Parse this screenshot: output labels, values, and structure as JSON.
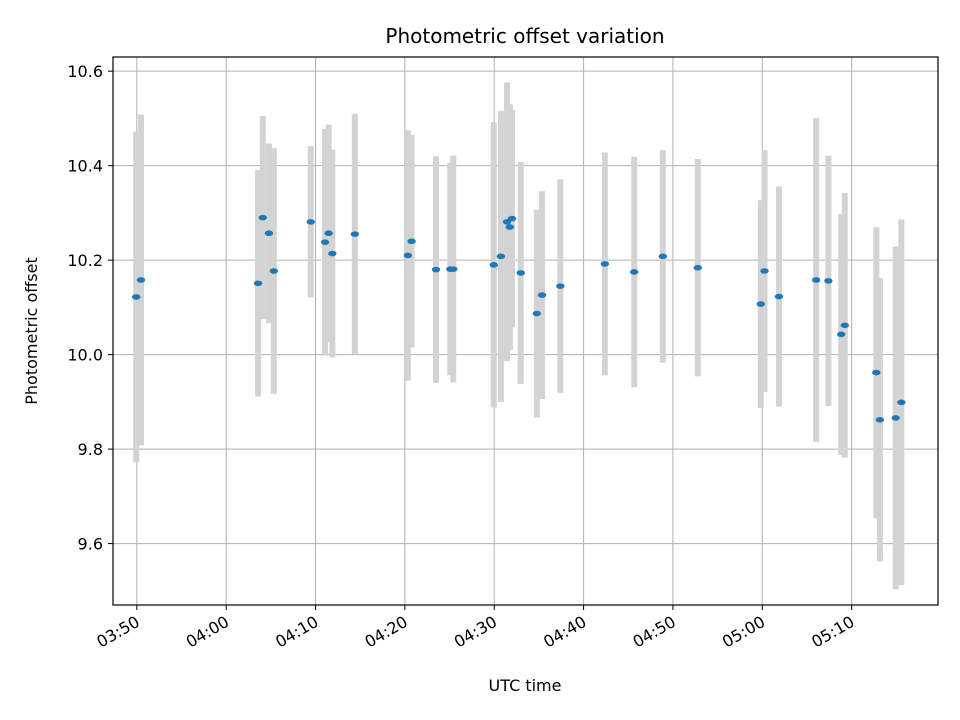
{
  "chart_data": {
    "type": "scatter",
    "title": "Photometric offset variation",
    "xlabel": "UTC time",
    "ylabel": "Photometric offset",
    "grid": true,
    "xlim": [
      "03:47:20",
      "05:19:40"
    ],
    "ylim": [
      9.47,
      10.63
    ],
    "x_ticks": [
      "03:50",
      "04:00",
      "04:10",
      "04:20",
      "04:30",
      "04:40",
      "04:50",
      "05:00",
      "05:10"
    ],
    "y_ticks": [
      9.6,
      9.8,
      10.0,
      10.2,
      10.4,
      10.6
    ],
    "y_tick_labels": [
      "9.6",
      "9.8",
      "10.0",
      "10.2",
      "10.4",
      "10.6"
    ],
    "colors": {
      "point": "#1f77b4",
      "errorbar": "#d3d3d3",
      "grid": "#b0b0b0"
    },
    "points": [
      {
        "t": "03:49:56",
        "y": 10.122,
        "err": 0.35
      },
      {
        "t": "03:50:28",
        "y": 10.158,
        "err": 0.35
      },
      {
        "t": "04:03:34",
        "y": 10.151,
        "err": 0.24
      },
      {
        "t": "04:04:06",
        "y": 10.29,
        "err": 0.215
      },
      {
        "t": "04:04:47",
        "y": 10.257,
        "err": 0.19
      },
      {
        "t": "04:05:20",
        "y": 10.177,
        "err": 0.26
      },
      {
        "t": "04:09:28",
        "y": 10.281,
        "err": 0.16
      },
      {
        "t": "04:11:04",
        "y": 10.238,
        "err": 0.24
      },
      {
        "t": "04:11:28",
        "y": 10.257,
        "err": 0.23
      },
      {
        "t": "04:11:53",
        "y": 10.214,
        "err": 0.22
      },
      {
        "t": "04:14:24",
        "y": 10.255,
        "err": 0.255
      },
      {
        "t": "04:20:20",
        "y": 10.21,
        "err": 0.265
      },
      {
        "t": "04:20:45",
        "y": 10.24,
        "err": 0.225
      },
      {
        "t": "04:23:29",
        "y": 10.18,
        "err": 0.24
      },
      {
        "t": "04:25:05",
        "y": 10.181,
        "err": 0.225
      },
      {
        "t": "04:25:25",
        "y": 10.181,
        "err": 0.24
      },
      {
        "t": "04:29:57",
        "y": 10.19,
        "err": 0.302
      },
      {
        "t": "04:30:45",
        "y": 10.208,
        "err": 0.308
      },
      {
        "t": "04:31:26",
        "y": 10.281,
        "err": 0.295
      },
      {
        "t": "04:31:45",
        "y": 10.27,
        "err": 0.26
      },
      {
        "t": "04:31:59",
        "y": 10.288,
        "err": 0.23
      },
      {
        "t": "04:32:58",
        "y": 10.173,
        "err": 0.235
      },
      {
        "t": "04:34:46",
        "y": 10.087,
        "err": 0.22
      },
      {
        "t": "04:35:21",
        "y": 10.126,
        "err": 0.22
      },
      {
        "t": "04:37:24",
        "y": 10.145,
        "err": 0.226
      },
      {
        "t": "04:42:23",
        "y": 10.192,
        "err": 0.236
      },
      {
        "t": "04:45:40",
        "y": 10.175,
        "err": 0.244
      },
      {
        "t": "04:48:52",
        "y": 10.208,
        "err": 0.225
      },
      {
        "t": "04:52:47",
        "y": 10.184,
        "err": 0.23
      },
      {
        "t": "04:59:50",
        "y": 10.107,
        "err": 0.22
      },
      {
        "t": "05:00:15",
        "y": 10.177,
        "err": 0.256
      },
      {
        "t": "05:01:52",
        "y": 10.123,
        "err": 0.233
      },
      {
        "t": "05:06:02",
        "y": 10.158,
        "err": 0.343
      },
      {
        "t": "05:07:24",
        "y": 10.156,
        "err": 0.265
      },
      {
        "t": "05:08:50",
        "y": 10.043,
        "err": 0.255
      },
      {
        "t": "05:09:14",
        "y": 10.062,
        "err": 0.28
      },
      {
        "t": "05:12:46",
        "y": 9.962,
        "err": 0.308
      },
      {
        "t": "05:13:10",
        "y": 9.862,
        "err": 0.3
      },
      {
        "t": "05:14:56",
        "y": 9.866,
        "err": 0.363
      },
      {
        "t": "05:15:34",
        "y": 9.899,
        "err": 0.387
      }
    ]
  }
}
